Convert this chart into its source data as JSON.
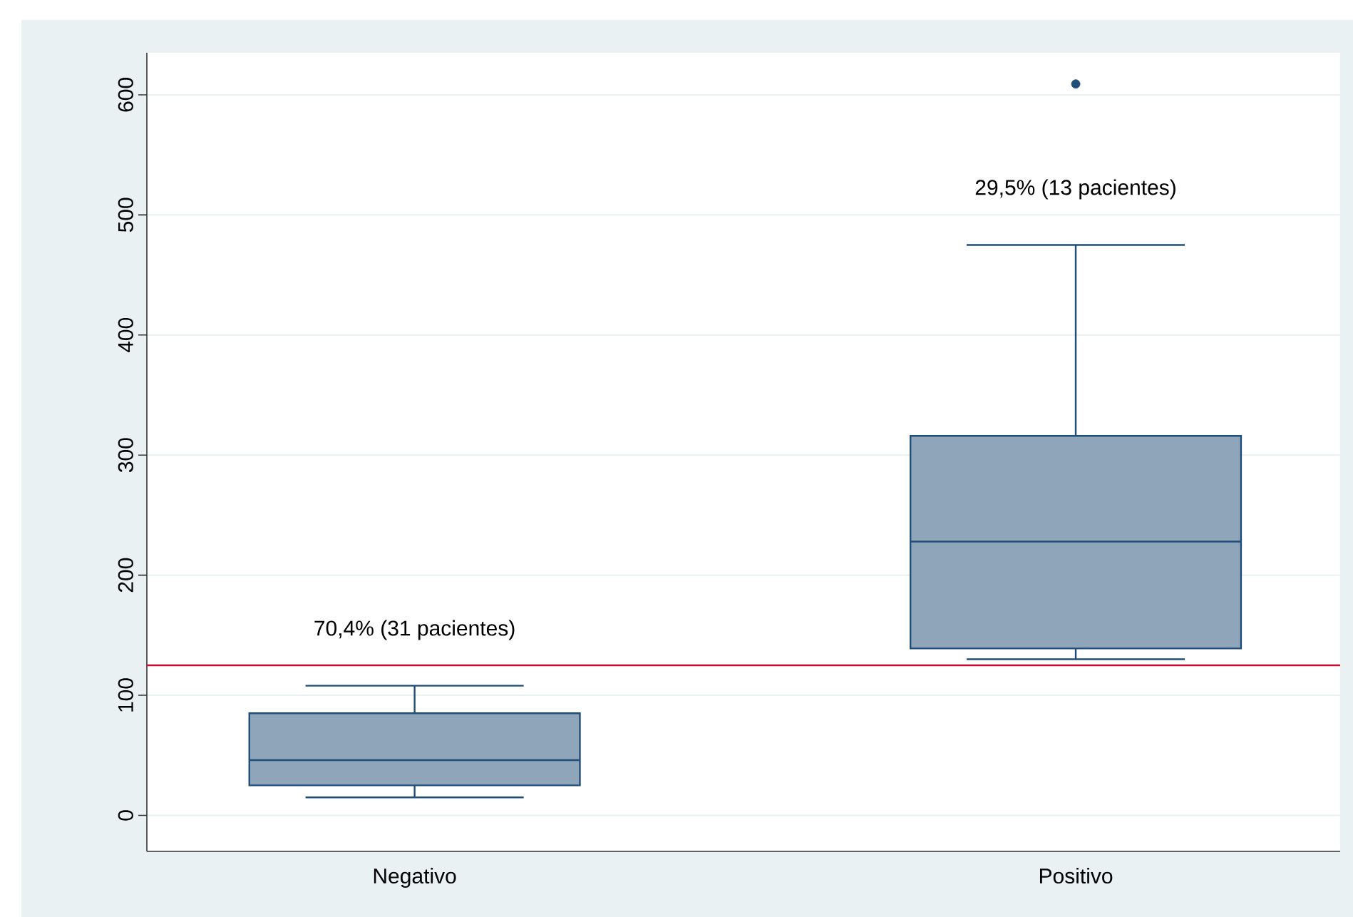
{
  "chart_data": {
    "type": "box",
    "categories": [
      "Negativo",
      "Positivo"
    ],
    "series": [
      {
        "color": "#8fa5ba",
        "boxes": [
          {
            "low": 15,
            "q1": 25,
            "median": 46,
            "q3": 85,
            "high": 108
          },
          {
            "low": 130,
            "q1": 139,
            "median": 228,
            "q3": 316,
            "high": 475,
            "outliers": [
              609
            ]
          }
        ]
      }
    ],
    "ylim": [
      -30,
      635
    ],
    "yticks": [
      0,
      100,
      200,
      300,
      400,
      500,
      600
    ],
    "grid": "y",
    "ref_lines": [
      {
        "axis": "y",
        "value": 125,
        "color": "#c8102e"
      }
    ],
    "annotations": [
      "70,4% (31 pacientes)",
      "29,5% (13 pacientes)"
    ]
  }
}
